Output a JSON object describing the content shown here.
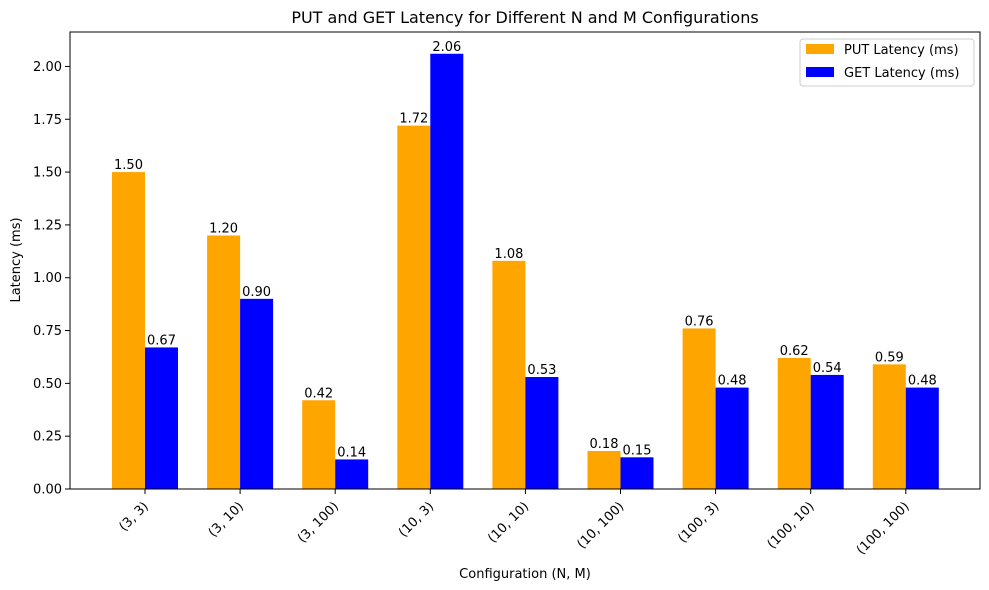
{
  "chart_data": {
    "type": "bar",
    "title": "PUT and GET Latency for Different N and M Configurations",
    "xlabel": "Configuration (N, M)",
    "ylabel": "Latency (ms)",
    "ylim": [
      0,
      2.163
    ],
    "yticks": [
      "0.00",
      "0.25",
      "0.50",
      "0.75",
      "1.00",
      "1.25",
      "1.50",
      "1.75",
      "2.00"
    ],
    "categories": [
      "(3, 3)",
      "(3, 10)",
      "(3, 100)",
      "(10, 3)",
      "(10, 10)",
      "(10, 100)",
      "(100, 3)",
      "(100, 10)",
      "(100, 100)"
    ],
    "series": [
      {
        "name": "PUT Latency (ms)",
        "color": "#ffa500",
        "values": [
          1.5,
          1.2,
          0.42,
          1.72,
          1.08,
          0.18,
          0.76,
          0.62,
          0.59
        ],
        "labels": [
          "1.50",
          "1.20",
          "0.42",
          "1.72",
          "1.08",
          "0.18",
          "0.76",
          "0.62",
          "0.59"
        ]
      },
      {
        "name": "GET Latency (ms)",
        "color": "#0000ff",
        "values": [
          0.67,
          0.9,
          0.14,
          2.06,
          0.53,
          0.15,
          0.48,
          0.54,
          0.48
        ],
        "labels": [
          "0.67",
          "0.90",
          "0.14",
          "2.06",
          "0.53",
          "0.15",
          "0.48",
          "0.54",
          "0.48"
        ]
      }
    ],
    "legend_position": "top-right",
    "grid": false
  }
}
